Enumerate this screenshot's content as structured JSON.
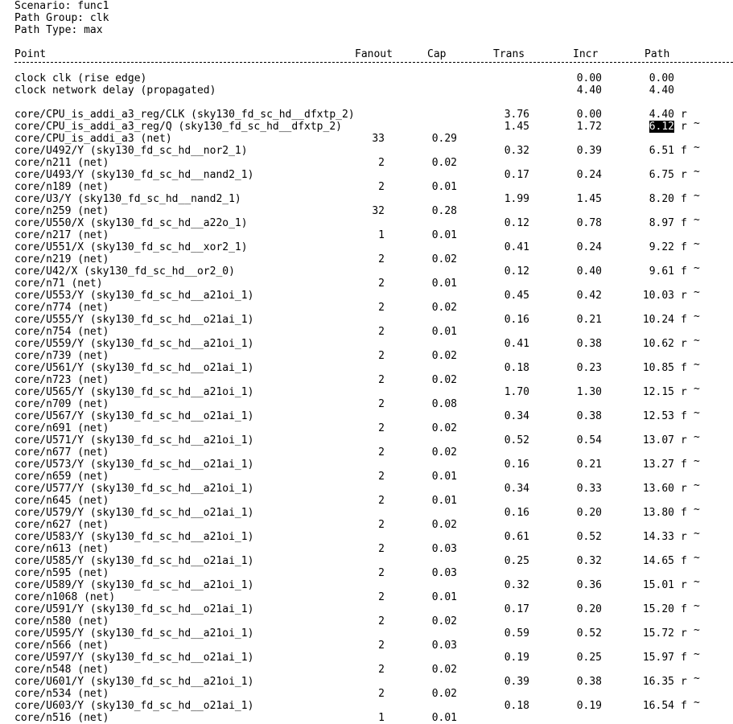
{
  "header": {
    "scenario": "Scenario: func1",
    "path_group": "Path Group: clk",
    "path_type": "Path Type: max"
  },
  "columns": {
    "point": "Point",
    "fanout": "Fanout",
    "cap": "Cap",
    "trans": "Trans",
    "incr": "Incr",
    "path": "Path"
  },
  "selected_value": "6.12",
  "rows": [
    {
      "point": "clock clk (rise edge)",
      "fanout": "",
      "cap": "",
      "trans": "",
      "incr": "0.00",
      "path": "0.00",
      "edge": "",
      "mark": ""
    },
    {
      "point": "clock network delay (propagated)",
      "fanout": "",
      "cap": "",
      "trans": "",
      "incr": "4.40",
      "path": "4.40",
      "edge": "",
      "mark": ""
    },
    {
      "point": "core/CPU_is_addi_a3_reg/CLK (sky130_fd_sc_hd__dfxtp_2)",
      "fanout": "",
      "cap": "",
      "trans": "3.76",
      "incr": "0.00",
      "path": "4.40",
      "edge": "r",
      "mark": ""
    },
    {
      "point": "core/CPU_is_addi_a3_reg/Q (sky130_fd_sc_hd__dfxtp_2)",
      "fanout": "",
      "cap": "",
      "trans": "1.45",
      "incr": "1.72",
      "path": "6.12",
      "edge": "r",
      "mark": "~",
      "selected": true
    },
    {
      "point": "core/CPU_is_addi_a3 (net)",
      "fanout": "33",
      "cap": "0.29",
      "trans": "",
      "incr": "",
      "path": "",
      "edge": "",
      "mark": ""
    },
    {
      "point": "core/U492/Y (sky130_fd_sc_hd__nor2_1)",
      "fanout": "",
      "cap": "",
      "trans": "0.32",
      "incr": "0.39",
      "path": "6.51",
      "edge": "f",
      "mark": "~"
    },
    {
      "point": "core/n211 (net)",
      "fanout": "2",
      "cap": "0.02",
      "trans": "",
      "incr": "",
      "path": "",
      "edge": "",
      "mark": ""
    },
    {
      "point": "core/U493/Y (sky130_fd_sc_hd__nand2_1)",
      "fanout": "",
      "cap": "",
      "trans": "0.17",
      "incr": "0.24",
      "path": "6.75",
      "edge": "r",
      "mark": "~"
    },
    {
      "point": "core/n189 (net)",
      "fanout": "2",
      "cap": "0.01",
      "trans": "",
      "incr": "",
      "path": "",
      "edge": "",
      "mark": ""
    },
    {
      "point": "core/U3/Y (sky130_fd_sc_hd__nand2_1)",
      "fanout": "",
      "cap": "",
      "trans": "1.99",
      "incr": "1.45",
      "path": "8.20",
      "edge": "f",
      "mark": "~"
    },
    {
      "point": "core/n259 (net)",
      "fanout": "32",
      "cap": "0.28",
      "trans": "",
      "incr": "",
      "path": "",
      "edge": "",
      "mark": ""
    },
    {
      "point": "core/U550/X (sky130_fd_sc_hd__a22o_1)",
      "fanout": "",
      "cap": "",
      "trans": "0.12",
      "incr": "0.78",
      "path": "8.97",
      "edge": "f",
      "mark": "~"
    },
    {
      "point": "core/n217 (net)",
      "fanout": "1",
      "cap": "0.01",
      "trans": "",
      "incr": "",
      "path": "",
      "edge": "",
      "mark": ""
    },
    {
      "point": "core/U551/X (sky130_fd_sc_hd__xor2_1)",
      "fanout": "",
      "cap": "",
      "trans": "0.41",
      "incr": "0.24",
      "path": "9.22",
      "edge": "f",
      "mark": "~"
    },
    {
      "point": "core/n219 (net)",
      "fanout": "2",
      "cap": "0.02",
      "trans": "",
      "incr": "",
      "path": "",
      "edge": "",
      "mark": ""
    },
    {
      "point": "core/U42/X (sky130_fd_sc_hd__or2_0)",
      "fanout": "",
      "cap": "",
      "trans": "0.12",
      "incr": "0.40",
      "path": "9.61",
      "edge": "f",
      "mark": "~"
    },
    {
      "point": "core/n71 (net)",
      "fanout": "2",
      "cap": "0.01",
      "trans": "",
      "incr": "",
      "path": "",
      "edge": "",
      "mark": ""
    },
    {
      "point": "core/U553/Y (sky130_fd_sc_hd__a21oi_1)",
      "fanout": "",
      "cap": "",
      "trans": "0.45",
      "incr": "0.42",
      "path": "10.03",
      "edge": "r",
      "mark": "~"
    },
    {
      "point": "core/n774 (net)",
      "fanout": "2",
      "cap": "0.02",
      "trans": "",
      "incr": "",
      "path": "",
      "edge": "",
      "mark": ""
    },
    {
      "point": "core/U555/Y (sky130_fd_sc_hd__o21ai_1)",
      "fanout": "",
      "cap": "",
      "trans": "0.16",
      "incr": "0.21",
      "path": "10.24",
      "edge": "f",
      "mark": "~"
    },
    {
      "point": "core/n754 (net)",
      "fanout": "2",
      "cap": "0.01",
      "trans": "",
      "incr": "",
      "path": "",
      "edge": "",
      "mark": ""
    },
    {
      "point": "core/U559/Y (sky130_fd_sc_hd__a21oi_1)",
      "fanout": "",
      "cap": "",
      "trans": "0.41",
      "incr": "0.38",
      "path": "10.62",
      "edge": "r",
      "mark": "~"
    },
    {
      "point": "core/n739 (net)",
      "fanout": "2",
      "cap": "0.02",
      "trans": "",
      "incr": "",
      "path": "",
      "edge": "",
      "mark": ""
    },
    {
      "point": "core/U561/Y (sky130_fd_sc_hd__o21ai_1)",
      "fanout": "",
      "cap": "",
      "trans": "0.18",
      "incr": "0.23",
      "path": "10.85",
      "edge": "f",
      "mark": "~"
    },
    {
      "point": "core/n723 (net)",
      "fanout": "2",
      "cap": "0.02",
      "trans": "",
      "incr": "",
      "path": "",
      "edge": "",
      "mark": ""
    },
    {
      "point": "core/U565/Y (sky130_fd_sc_hd__a21oi_1)",
      "fanout": "",
      "cap": "",
      "trans": "1.70",
      "incr": "1.30",
      "path": "12.15",
      "edge": "r",
      "mark": "~"
    },
    {
      "point": "core/n709 (net)",
      "fanout": "2",
      "cap": "0.08",
      "trans": "",
      "incr": "",
      "path": "",
      "edge": "",
      "mark": ""
    },
    {
      "point": "core/U567/Y (sky130_fd_sc_hd__o21ai_1)",
      "fanout": "",
      "cap": "",
      "trans": "0.34",
      "incr": "0.38",
      "path": "12.53",
      "edge": "f",
      "mark": "~"
    },
    {
      "point": "core/n691 (net)",
      "fanout": "2",
      "cap": "0.02",
      "trans": "",
      "incr": "",
      "path": "",
      "edge": "",
      "mark": ""
    },
    {
      "point": "core/U571/Y (sky130_fd_sc_hd__a21oi_1)",
      "fanout": "",
      "cap": "",
      "trans": "0.52",
      "incr": "0.54",
      "path": "13.07",
      "edge": "r",
      "mark": "~"
    },
    {
      "point": "core/n677 (net)",
      "fanout": "2",
      "cap": "0.02",
      "trans": "",
      "incr": "",
      "path": "",
      "edge": "",
      "mark": ""
    },
    {
      "point": "core/U573/Y (sky130_fd_sc_hd__o21ai_1)",
      "fanout": "",
      "cap": "",
      "trans": "0.16",
      "incr": "0.21",
      "path": "13.27",
      "edge": "f",
      "mark": "~"
    },
    {
      "point": "core/n659 (net)",
      "fanout": "2",
      "cap": "0.01",
      "trans": "",
      "incr": "",
      "path": "",
      "edge": "",
      "mark": ""
    },
    {
      "point": "core/U577/Y (sky130_fd_sc_hd__a21oi_1)",
      "fanout": "",
      "cap": "",
      "trans": "0.34",
      "incr": "0.33",
      "path": "13.60",
      "edge": "r",
      "mark": "~"
    },
    {
      "point": "core/n645 (net)",
      "fanout": "2",
      "cap": "0.01",
      "trans": "",
      "incr": "",
      "path": "",
      "edge": "",
      "mark": ""
    },
    {
      "point": "core/U579/Y (sky130_fd_sc_hd__o21ai_1)",
      "fanout": "",
      "cap": "",
      "trans": "0.16",
      "incr": "0.20",
      "path": "13.80",
      "edge": "f",
      "mark": "~"
    },
    {
      "point": "core/n627 (net)",
      "fanout": "2",
      "cap": "0.02",
      "trans": "",
      "incr": "",
      "path": "",
      "edge": "",
      "mark": ""
    },
    {
      "point": "core/U583/Y (sky130_fd_sc_hd__a21oi_1)",
      "fanout": "",
      "cap": "",
      "trans": "0.61",
      "incr": "0.52",
      "path": "14.33",
      "edge": "r",
      "mark": "~"
    },
    {
      "point": "core/n613 (net)",
      "fanout": "2",
      "cap": "0.03",
      "trans": "",
      "incr": "",
      "path": "",
      "edge": "",
      "mark": ""
    },
    {
      "point": "core/U585/Y (sky130_fd_sc_hd__o21ai_1)",
      "fanout": "",
      "cap": "",
      "trans": "0.25",
      "incr": "0.32",
      "path": "14.65",
      "edge": "f",
      "mark": "~"
    },
    {
      "point": "core/n595 (net)",
      "fanout": "2",
      "cap": "0.03",
      "trans": "",
      "incr": "",
      "path": "",
      "edge": "",
      "mark": ""
    },
    {
      "point": "core/U589/Y (sky130_fd_sc_hd__a21oi_1)",
      "fanout": "",
      "cap": "",
      "trans": "0.32",
      "incr": "0.36",
      "path": "15.01",
      "edge": "r",
      "mark": "~"
    },
    {
      "point": "core/n1068 (net)",
      "fanout": "2",
      "cap": "0.01",
      "trans": "",
      "incr": "",
      "path": "",
      "edge": "",
      "mark": ""
    },
    {
      "point": "core/U591/Y (sky130_fd_sc_hd__o21ai_1)",
      "fanout": "",
      "cap": "",
      "trans": "0.17",
      "incr": "0.20",
      "path": "15.20",
      "edge": "f",
      "mark": "~"
    },
    {
      "point": "core/n580 (net)",
      "fanout": "2",
      "cap": "0.02",
      "trans": "",
      "incr": "",
      "path": "",
      "edge": "",
      "mark": ""
    },
    {
      "point": "core/U595/Y (sky130_fd_sc_hd__a21oi_1)",
      "fanout": "",
      "cap": "",
      "trans": "0.59",
      "incr": "0.52",
      "path": "15.72",
      "edge": "r",
      "mark": "~"
    },
    {
      "point": "core/n566 (net)",
      "fanout": "2",
      "cap": "0.03",
      "trans": "",
      "incr": "",
      "path": "",
      "edge": "",
      "mark": ""
    },
    {
      "point": "core/U597/Y (sky130_fd_sc_hd__o21ai_1)",
      "fanout": "",
      "cap": "",
      "trans": "0.19",
      "incr": "0.25",
      "path": "15.97",
      "edge": "f",
      "mark": "~"
    },
    {
      "point": "core/n548 (net)",
      "fanout": "2",
      "cap": "0.02",
      "trans": "",
      "incr": "",
      "path": "",
      "edge": "",
      "mark": ""
    },
    {
      "point": "core/U601/Y (sky130_fd_sc_hd__a21oi_1)",
      "fanout": "",
      "cap": "",
      "trans": "0.39",
      "incr": "0.38",
      "path": "16.35",
      "edge": "r",
      "mark": "~"
    },
    {
      "point": "core/n534 (net)",
      "fanout": "2",
      "cap": "0.02",
      "trans": "",
      "incr": "",
      "path": "",
      "edge": "",
      "mark": ""
    },
    {
      "point": "core/U603/Y (sky130_fd_sc_hd__o21ai_1)",
      "fanout": "",
      "cap": "",
      "trans": "0.18",
      "incr": "0.19",
      "path": "16.54",
      "edge": "f",
      "mark": "~"
    },
    {
      "point": "core/n516 (net)",
      "fanout": "1",
      "cap": "0.01",
      "trans": "",
      "incr": "",
      "path": "",
      "edge": "",
      "mark": ""
    }
  ]
}
